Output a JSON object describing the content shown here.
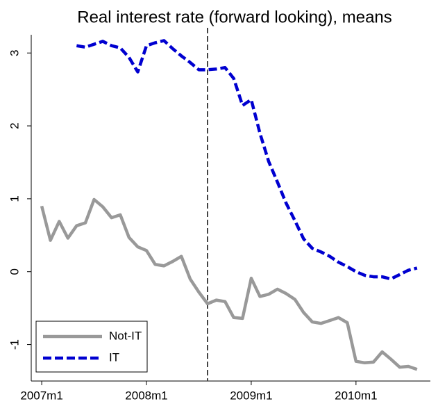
{
  "chart_data": {
    "type": "line",
    "title": "Real interest rate (forward looking), means",
    "x": [
      2007.0,
      2007.083,
      2007.167,
      2007.25,
      2007.333,
      2007.417,
      2007.5,
      2007.583,
      2007.667,
      2007.75,
      2007.833,
      2007.917,
      2008.0,
      2008.083,
      2008.167,
      2008.25,
      2008.333,
      2008.417,
      2008.5,
      2008.583,
      2008.667,
      2008.75,
      2008.833,
      2008.917,
      2009.0,
      2009.083,
      2009.167,
      2009.25,
      2009.333,
      2009.417,
      2009.5,
      2009.583,
      2009.667,
      2009.75,
      2009.833,
      2009.917,
      2010.0,
      2010.083,
      2010.167,
      2010.25,
      2010.333,
      2010.417,
      2010.5,
      2010.583
    ],
    "series": [
      {
        "name": "Not-IT",
        "color": "#999999",
        "dash": false,
        "values": [
          0.9,
          0.43,
          0.69,
          0.46,
          0.63,
          0.67,
          0.99,
          0.89,
          0.74,
          0.78,
          0.47,
          0.34,
          0.29,
          0.1,
          0.08,
          0.14,
          0.21,
          -0.1,
          -0.28,
          -0.44,
          -0.39,
          -0.41,
          -0.63,
          -0.64,
          -0.09,
          -0.34,
          -0.31,
          -0.24,
          -0.3,
          -0.38,
          -0.56,
          -0.69,
          -0.71,
          -0.67,
          -0.63,
          -0.7,
          -1.23,
          -1.25,
          -1.24,
          -1.1,
          -1.2,
          -1.31,
          -1.3,
          -1.34
        ]
      },
      {
        "name": "IT",
        "color": "#0000d0",
        "dash": true,
        "values": [
          null,
          null,
          null,
          null,
          3.1,
          3.08,
          3.12,
          3.16,
          3.1,
          3.07,
          2.94,
          2.74,
          3.1,
          3.14,
          3.17,
          3.06,
          2.96,
          2.87,
          2.77,
          2.77,
          2.78,
          2.8,
          2.65,
          2.28,
          2.36,
          1.9,
          1.51,
          1.23,
          0.94,
          0.7,
          0.45,
          0.32,
          0.27,
          0.21,
          0.13,
          0.07,
          0.0,
          -0.05,
          -0.07,
          -0.07,
          -0.1,
          -0.04,
          0.02,
          0.05
        ]
      }
    ],
    "xlim": [
      2006.9,
      2010.71
    ],
    "xticks": [
      {
        "value": 2007,
        "label": "2007m1"
      },
      {
        "value": 2008,
        "label": "2008m1"
      },
      {
        "value": 2009,
        "label": "2009m1"
      },
      {
        "value": 2010,
        "label": "2010m1"
      }
    ],
    "ylim": [
      -1.5,
      3.25
    ],
    "yticks": [
      -1,
      0,
      1,
      2,
      3
    ],
    "vline": 2008.583,
    "legend": "lower left"
  }
}
